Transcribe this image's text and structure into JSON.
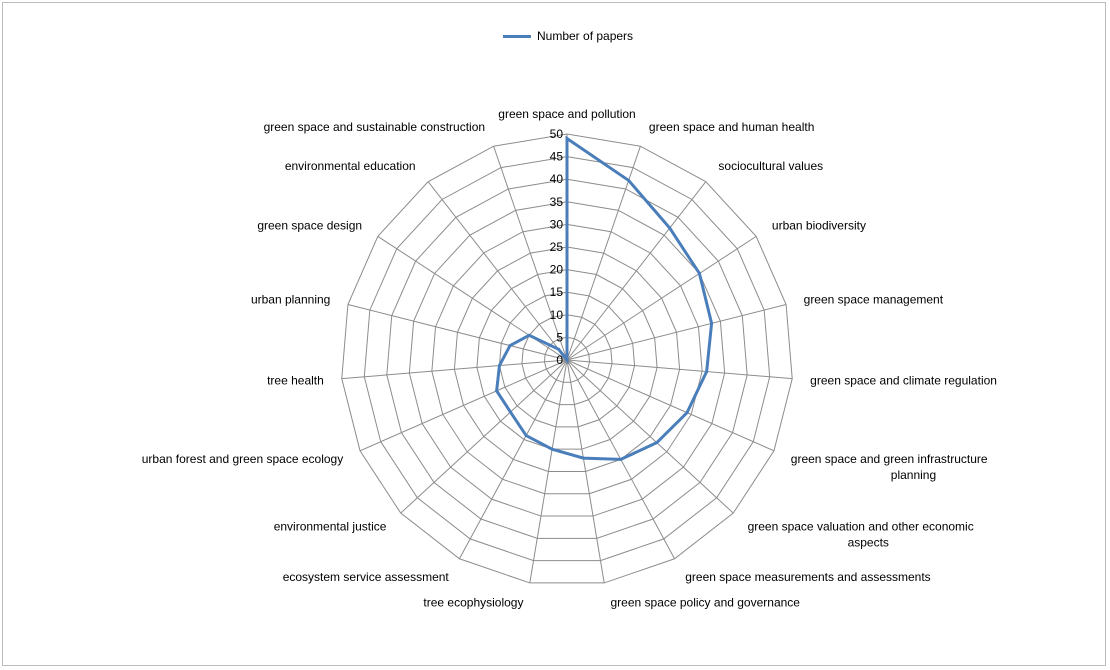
{
  "chart_data": {
    "type": "radar",
    "title": "",
    "categories": [
      "green space and pollution",
      "green space and human health",
      "sociocultural values",
      "urban biodiversity",
      "green space management",
      "green space and climate regulation",
      "green space and green infrastructure planning",
      "green space valuation and other economic aspects",
      "green space measurements and assessments",
      "green space policy and governance",
      "tree ecophysiology",
      "ecosystem service assessment",
      "environmental justice",
      "urban forest and green space ecology",
      "tree health",
      "urban planning",
      "green space design",
      "environmental education",
      "green space and sustainable construction"
    ],
    "series": [
      {
        "name": "Number of papers",
        "values": [
          49,
          42,
          37,
          35,
          33,
          31,
          29,
          27,
          25,
          22,
          20,
          19,
          17,
          17,
          15,
          13,
          10,
          3,
          0
        ]
      }
    ],
    "rlim": [
      0,
      50
    ],
    "ticks": [
      "0",
      "5",
      "10",
      "15",
      "20",
      "25",
      "30",
      "35",
      "40",
      "45",
      "50"
    ],
    "legend_position": "top",
    "grid": true,
    "colors": {
      "series": "#4a7ebb",
      "grid": "#8c8c8c"
    }
  }
}
